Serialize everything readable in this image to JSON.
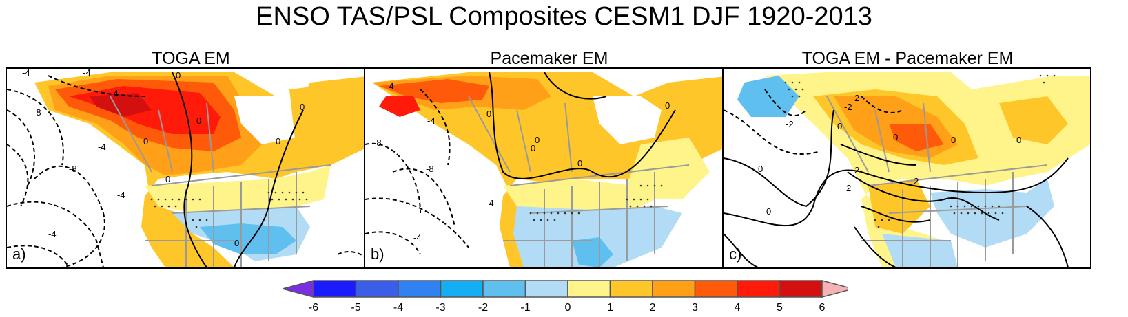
{
  "figure": {
    "title": "ENSO TAS/PSL Composites CESM1 DJF 1920-2013"
  },
  "panels": [
    {
      "title": "TOGA EM",
      "letter": "a)"
    },
    {
      "title": "Pacemaker EM",
      "letter": "b)"
    },
    {
      "title": "TOGA EM - Pacemaker EM",
      "letter": "c)"
    }
  ],
  "contour_labels": {
    "a": [
      "-4",
      "-4",
      "-8",
      "-8",
      "-4",
      "-4",
      "0",
      "0",
      "0",
      "0",
      "0",
      "-4",
      "0",
      "-4",
      "0"
    ],
    "b": [
      "-4",
      "-4",
      "-8",
      "-8",
      "-4",
      "-4",
      "0",
      "0",
      "0",
      "0",
      "0"
    ],
    "c": [
      "-2",
      "2",
      "-2",
      "0",
      "0",
      "2",
      "0",
      "0",
      "2",
      "2",
      "0",
      "0"
    ]
  },
  "colorbar": {
    "ticks": [
      "-6",
      "-5",
      "-4",
      "-3",
      "-2",
      "-1",
      "0",
      "1",
      "2",
      "3",
      "4",
      "5",
      "6"
    ],
    "colors": {
      "below": "#7a2fe0",
      "bins": [
        "#1b1bff",
        "#3a5ee8",
        "#2f82f0",
        "#14aef5",
        "#5fc0f0",
        "#b2dcf5",
        "#fff48a",
        "#ffc62a",
        "#ffa018",
        "#ff5a0a",
        "#ff1a0a",
        "#d40f10"
      ],
      "above": "#f7b2b4"
    }
  },
  "colors": {
    "land_gray": "#9a9a9a",
    "ocean": "#ffffff"
  }
}
